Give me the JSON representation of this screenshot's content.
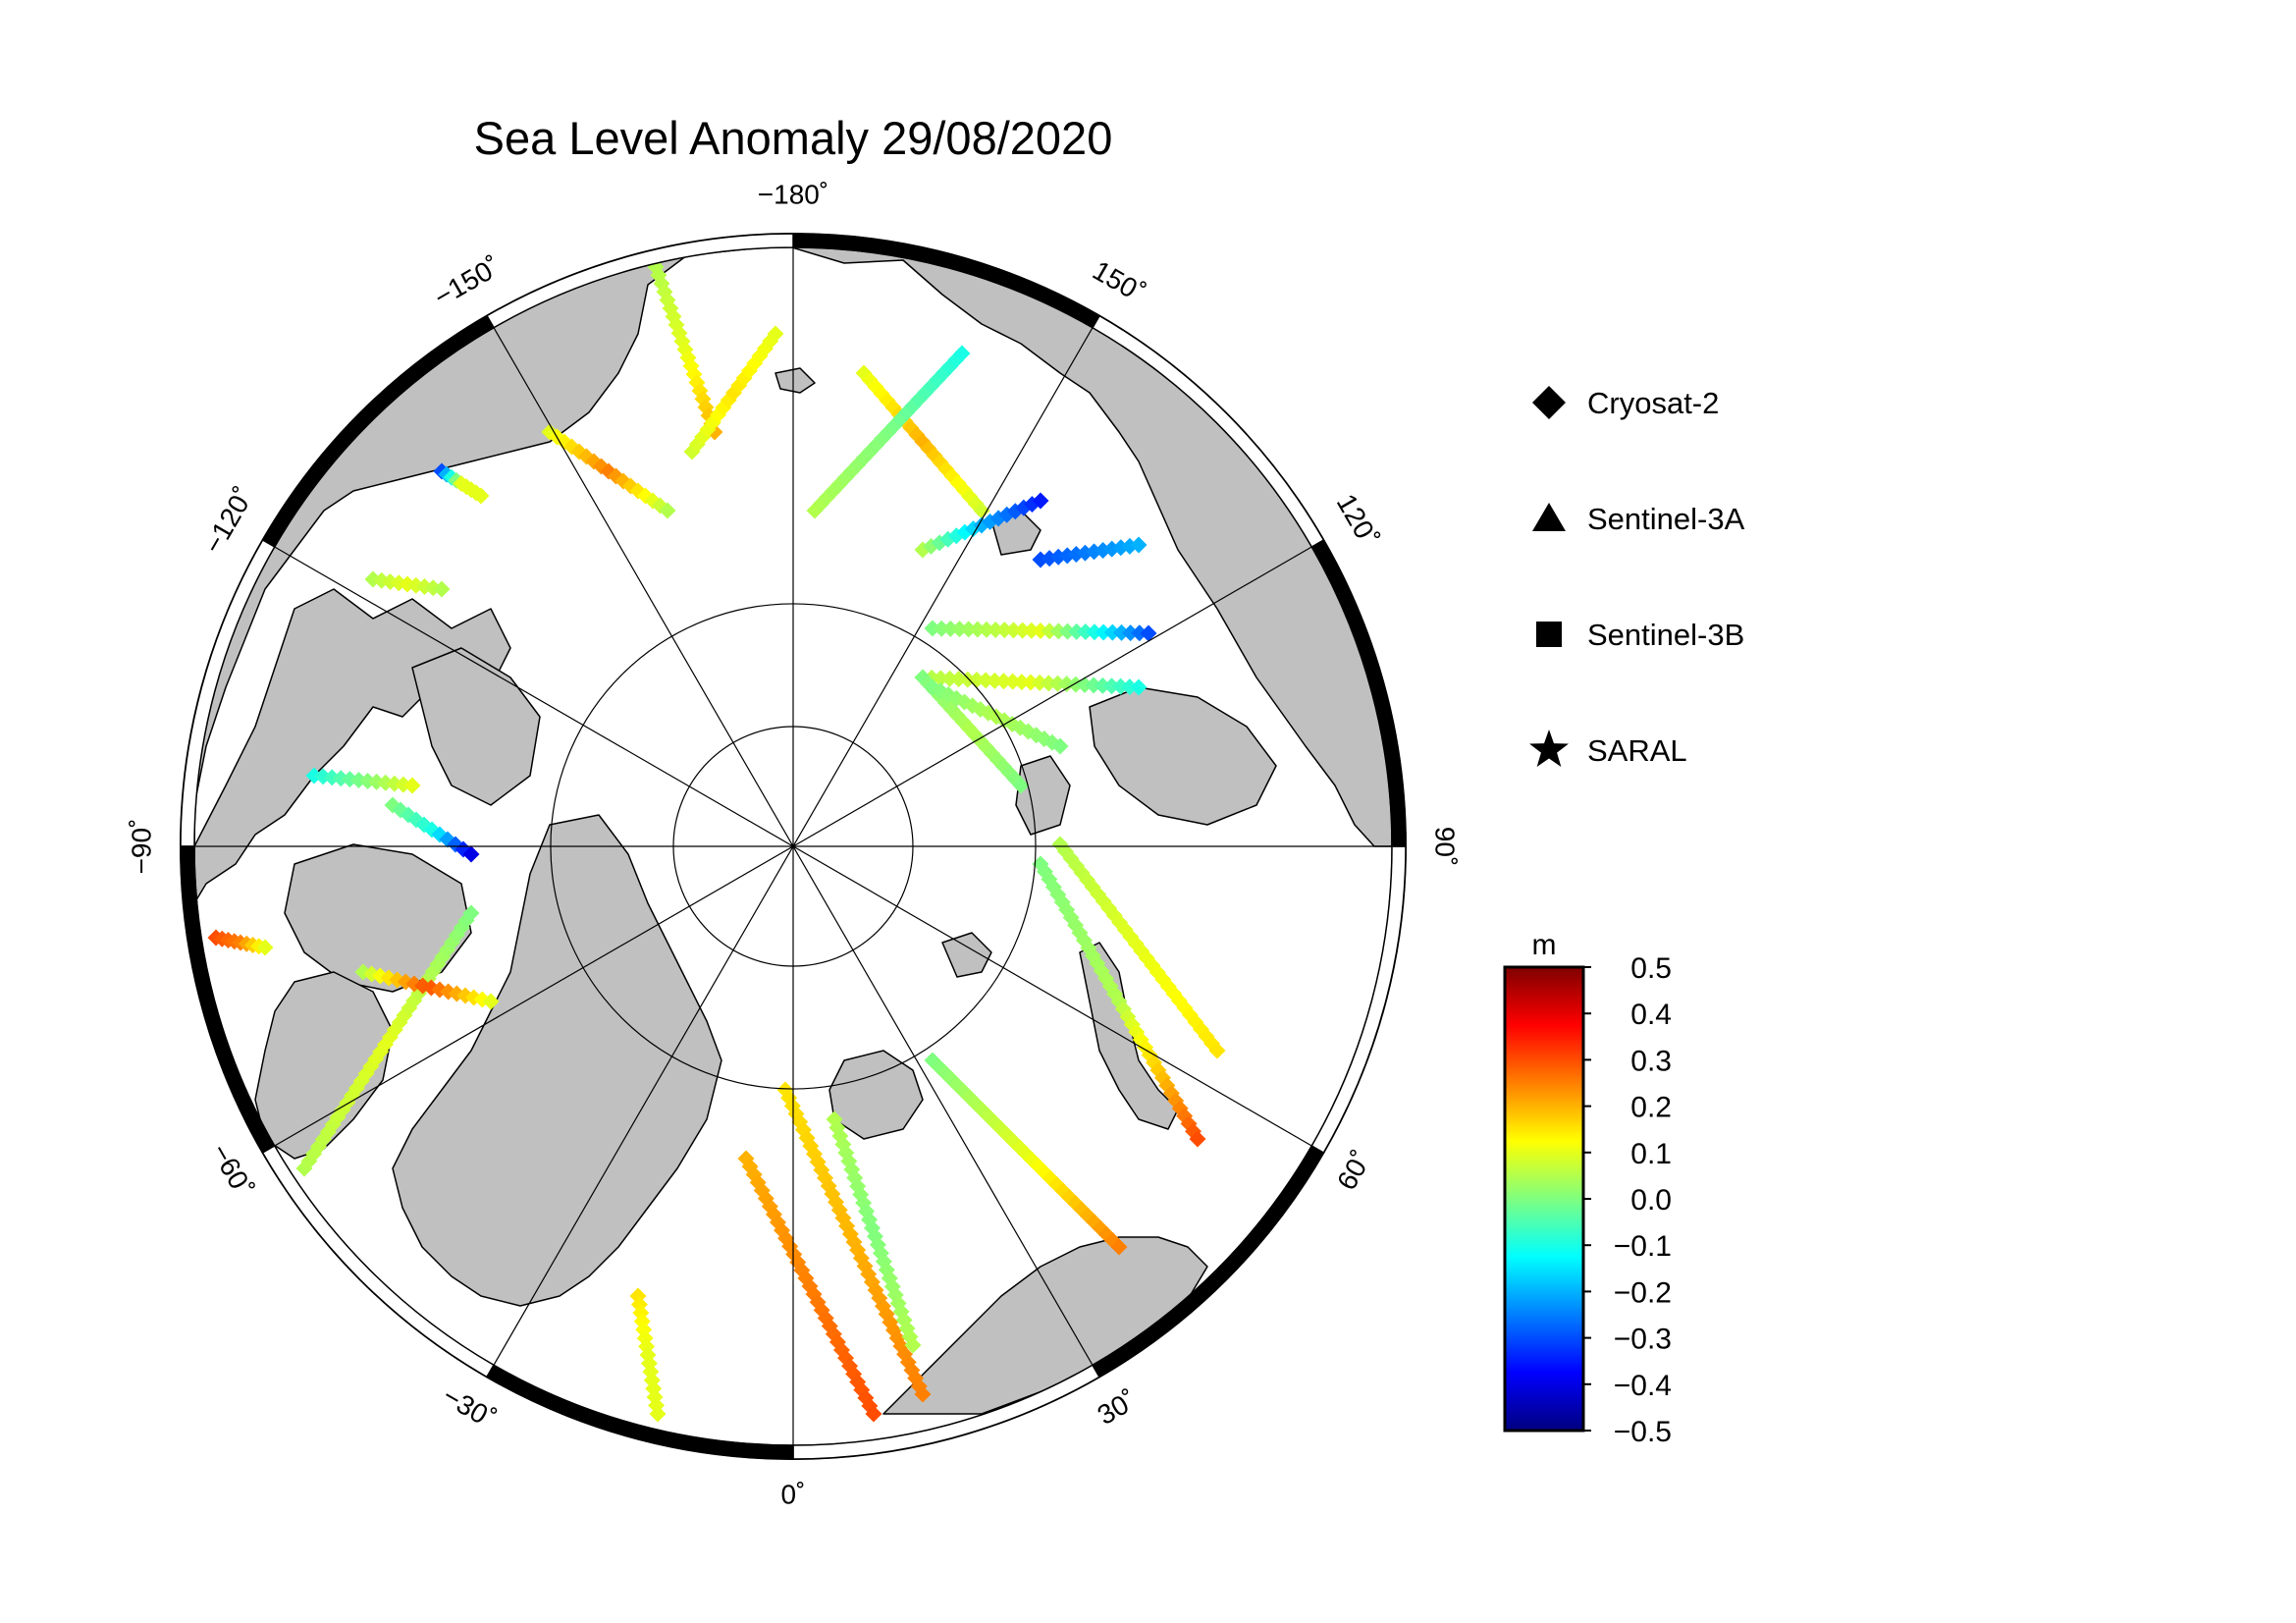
{
  "title": "Sea Level Anomaly 29/08/2020",
  "longitude_labels": [
    {
      "deg": 180,
      "text": "−180"
    },
    {
      "deg": 150,
      "text": "150"
    },
    {
      "deg": 120,
      "text": "120"
    },
    {
      "deg": 90,
      "text": "90"
    },
    {
      "deg": 60,
      "text": "60"
    },
    {
      "deg": 30,
      "text": "30"
    },
    {
      "deg": 0,
      "text": "0"
    },
    {
      "deg": -30,
      "text": "−30"
    },
    {
      "deg": -60,
      "text": "−60"
    },
    {
      "deg": -90,
      "text": "−90"
    },
    {
      "deg": -120,
      "text": "−120"
    },
    {
      "deg": -150,
      "text": "−150"
    }
  ],
  "legend": [
    {
      "label": "Cryosat-2",
      "marker": "diamond"
    },
    {
      "label": "Sentinel-3A",
      "marker": "triangle"
    },
    {
      "label": "Sentinel-3B",
      "marker": "square"
    },
    {
      "label": "SARAL",
      "marker": "star"
    }
  ],
  "colorbar": {
    "unit": "m",
    "range": [
      -0.5,
      0.5
    ],
    "ticks": [
      "0.5",
      "0.4",
      "0.3",
      "0.2",
      "0.1",
      "0.0",
      "−0.1",
      "−0.2",
      "−0.3",
      "−0.4",
      "−0.5"
    ],
    "colors": [
      "#00007f",
      "#0000ff",
      "#007fff",
      "#00ffff",
      "#7fff7f",
      "#ffff00",
      "#ff7f00",
      "#ff0000",
      "#7f0000"
    ]
  },
  "colors": {
    "land": "#c0c0c0",
    "ocean": "#ffffff",
    "frame_dark": "#000000"
  }
}
